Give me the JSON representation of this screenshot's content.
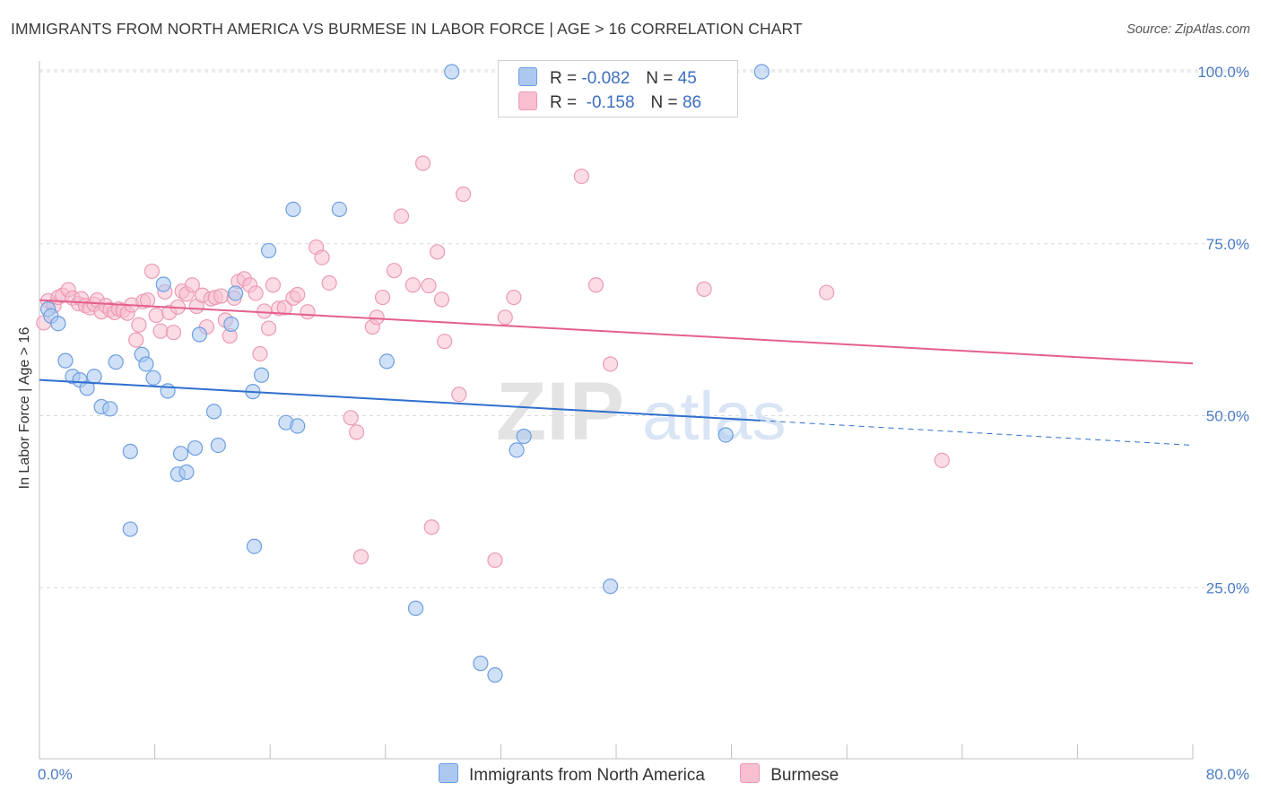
{
  "title": "IMMIGRANTS FROM NORTH AMERICA VS BURMESE IN LABOR FORCE | AGE > 16 CORRELATION CHART",
  "source": "Source: ZipAtlas.com",
  "watermark": {
    "zip": "ZIP",
    "atlas": "atlas"
  },
  "legend": {
    "r_label": "R =",
    "n_label": "N =",
    "series1": {
      "r": "-0.082",
      "n": "45"
    },
    "series2": {
      "r": "-0.158",
      "n": "86"
    }
  },
  "bottom_legend": {
    "series1": "Immigrants from North America",
    "series2": "Burmese"
  },
  "colors": {
    "blue_fill": "#aac8f0",
    "blue_stroke": "#6d9ee0",
    "blue_line": "#2f6fce",
    "pink_fill": "#f7bfd0",
    "pink_stroke": "#ec9ab4",
    "pink_line": "#e45f8c",
    "tick_text": "#4a7cc4"
  },
  "chart_data": {
    "type": "scatter",
    "title": "IMMIGRANTS FROM NORTH AMERICA VS BURMESE IN LABOR FORCE | AGE > 16 CORRELATION CHART",
    "xlabel": "",
    "ylabel": "In Labor Force | Age > 16",
    "xlim": [
      0,
      80
    ],
    "ylim": [
      0,
      102
    ],
    "x_tick_labels": [
      "0.0%",
      "80.0%"
    ],
    "y_ticks": [
      25,
      50,
      75,
      100
    ],
    "y_tick_labels": [
      "25.0%",
      "50.0%",
      "75.0%",
      "100.0%"
    ],
    "grid": true,
    "legend_position": "top-center",
    "series": [
      {
        "name": "Immigrants from North America",
        "color": "#aac8f0",
        "r": -0.082,
        "n": 45,
        "trend": {
          "x0": 0,
          "y0": 55.2,
          "x1": 50,
          "y1": 49.3,
          "dash_to_x": 80,
          "dash_to_y": 45.7
        },
        "points": [
          [
            0.6,
            65.5
          ],
          [
            0.8,
            64.5
          ],
          [
            1.3,
            63.4
          ],
          [
            1.8,
            58.0
          ],
          [
            2.3,
            55.7
          ],
          [
            2.8,
            55.2
          ],
          [
            3.3,
            54.0
          ],
          [
            3.8,
            55.7
          ],
          [
            4.3,
            51.3
          ],
          [
            4.9,
            51.0
          ],
          [
            5.3,
            57.8
          ],
          [
            6.3,
            33.5
          ],
          [
            6.3,
            44.8
          ],
          [
            7.1,
            58.9
          ],
          [
            7.4,
            57.5
          ],
          [
            7.9,
            55.5
          ],
          [
            8.6,
            69.1
          ],
          [
            8.9,
            53.6
          ],
          [
            9.6,
            41.5
          ],
          [
            9.8,
            44.5
          ],
          [
            10.2,
            41.8
          ],
          [
            10.8,
            45.3
          ],
          [
            11.1,
            61.8
          ],
          [
            12.1,
            50.6
          ],
          [
            12.4,
            45.7
          ],
          [
            13.3,
            63.3
          ],
          [
            13.6,
            67.8
          ],
          [
            14.8,
            53.5
          ],
          [
            14.9,
            31.0
          ],
          [
            15.4,
            55.9
          ],
          [
            15.9,
            74.0
          ],
          [
            17.1,
            49.0
          ],
          [
            17.6,
            80.0
          ],
          [
            17.9,
            48.5
          ],
          [
            20.8,
            80.0
          ],
          [
            24.1,
            57.9
          ],
          [
            26.1,
            22.0
          ],
          [
            28.6,
            100.0
          ],
          [
            30.6,
            14.0
          ],
          [
            31.6,
            12.3
          ],
          [
            33.1,
            45.0
          ],
          [
            33.6,
            47.0
          ],
          [
            39.6,
            25.2
          ],
          [
            47.6,
            47.2
          ],
          [
            50.1,
            100.0
          ]
        ]
      },
      {
        "name": "Burmese",
        "color": "#f7bfd0",
        "r": -0.158,
        "n": 86,
        "trend": {
          "x0": 0,
          "y0": 66.8,
          "x1": 80,
          "y1": 57.6
        },
        "points": [
          [
            0.3,
            63.5
          ],
          [
            0.6,
            66.7
          ],
          [
            1.0,
            66.0
          ],
          [
            1.3,
            67.2
          ],
          [
            1.6,
            67.5
          ],
          [
            2.0,
            68.3
          ],
          [
            2.3,
            67.1
          ],
          [
            2.7,
            66.3
          ],
          [
            2.9,
            67.0
          ],
          [
            3.2,
            66.0
          ],
          [
            3.5,
            65.7
          ],
          [
            3.8,
            66.2
          ],
          [
            4.0,
            66.8
          ],
          [
            4.3,
            65.1
          ],
          [
            4.6,
            66.0
          ],
          [
            4.9,
            65.4
          ],
          [
            5.2,
            65.0
          ],
          [
            5.5,
            65.5
          ],
          [
            5.8,
            65.3
          ],
          [
            6.1,
            64.9
          ],
          [
            6.4,
            66.1
          ],
          [
            6.7,
            61.0
          ],
          [
            6.9,
            63.2
          ],
          [
            7.2,
            66.6
          ],
          [
            7.5,
            66.8
          ],
          [
            7.8,
            71.0
          ],
          [
            8.1,
            64.6
          ],
          [
            8.4,
            62.3
          ],
          [
            8.7,
            68.0
          ],
          [
            9.0,
            65.0
          ],
          [
            9.3,
            62.1
          ],
          [
            9.6,
            65.8
          ],
          [
            9.9,
            68.1
          ],
          [
            10.2,
            67.7
          ],
          [
            10.6,
            69.0
          ],
          [
            10.9,
            65.9
          ],
          [
            11.3,
            67.5
          ],
          [
            11.6,
            62.9
          ],
          [
            11.9,
            67.0
          ],
          [
            12.2,
            67.2
          ],
          [
            12.6,
            67.4
          ],
          [
            12.9,
            63.9
          ],
          [
            13.2,
            61.6
          ],
          [
            13.5,
            67.1
          ],
          [
            13.8,
            69.5
          ],
          [
            14.2,
            69.9
          ],
          [
            14.6,
            69.0
          ],
          [
            15.0,
            67.8
          ],
          [
            15.3,
            59.0
          ],
          [
            15.6,
            65.2
          ],
          [
            15.9,
            62.7
          ],
          [
            16.2,
            69.0
          ],
          [
            16.6,
            65.6
          ],
          [
            17.0,
            65.7
          ],
          [
            17.6,
            67.1
          ],
          [
            17.9,
            67.6
          ],
          [
            18.6,
            65.1
          ],
          [
            19.2,
            74.5
          ],
          [
            19.6,
            73.0
          ],
          [
            20.1,
            69.3
          ],
          [
            21.6,
            49.7
          ],
          [
            22.0,
            47.6
          ],
          [
            22.3,
            29.5
          ],
          [
            23.1,
            62.9
          ],
          [
            23.4,
            64.3
          ],
          [
            23.8,
            67.2
          ],
          [
            24.6,
            71.1
          ],
          [
            25.1,
            79.0
          ],
          [
            25.9,
            69.0
          ],
          [
            26.6,
            86.7
          ],
          [
            27.2,
            33.8
          ],
          [
            27.6,
            73.8
          ],
          [
            27.9,
            66.9
          ],
          [
            28.1,
            60.8
          ],
          [
            29.1,
            53.1
          ],
          [
            29.4,
            82.2
          ],
          [
            31.6,
            29.0
          ],
          [
            32.3,
            64.3
          ],
          [
            32.9,
            67.2
          ],
          [
            37.6,
            84.8
          ],
          [
            38.6,
            69.0
          ],
          [
            39.6,
            57.5
          ],
          [
            46.1,
            68.4
          ],
          [
            54.6,
            67.9
          ],
          [
            62.6,
            43.5
          ],
          [
            27.0,
            68.9
          ]
        ]
      }
    ]
  }
}
